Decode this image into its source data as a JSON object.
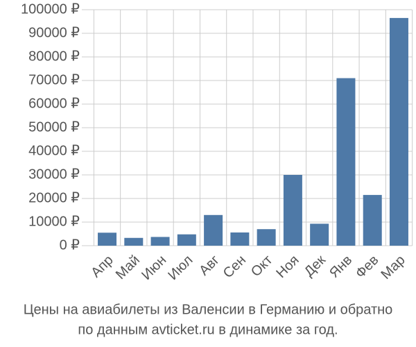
{
  "chart_data": {
    "type": "bar",
    "title": [
      "Цены на авиабилеты из Валенсии в Германию и обратно",
      "по данным avticket.ru в динамике за год."
    ],
    "categories": [
      "Апр",
      "Май",
      "Июн",
      "Июл",
      "Авг",
      "Сен",
      "Окт",
      "Ноя",
      "Дек",
      "Янв",
      "Фев",
      "Мар"
    ],
    "values": [
      5500,
      3300,
      3700,
      4800,
      13000,
      5600,
      7000,
      30000,
      9300,
      71000,
      21500,
      96500
    ],
    "color": "#4e79a7",
    "ylim": [
      0,
      100000
    ],
    "yticks": [
      {
        "value": 0,
        "label": "0 ₽"
      },
      {
        "value": 10000,
        "label": "10000 ₽"
      },
      {
        "value": 20000,
        "label": "20000 ₽"
      },
      {
        "value": 30000,
        "label": "30000 ₽"
      },
      {
        "value": 40000,
        "label": "40000 ₽"
      },
      {
        "value": 50000,
        "label": "50000 ₽"
      },
      {
        "value": 60000,
        "label": "60000 ₽"
      },
      {
        "value": 70000,
        "label": "70000 ₽"
      },
      {
        "value": 80000,
        "label": "80000 ₽"
      },
      {
        "value": 90000,
        "label": "90000 ₽"
      },
      {
        "value": 100000,
        "label": "100000 ₽"
      }
    ],
    "grid": true
  }
}
